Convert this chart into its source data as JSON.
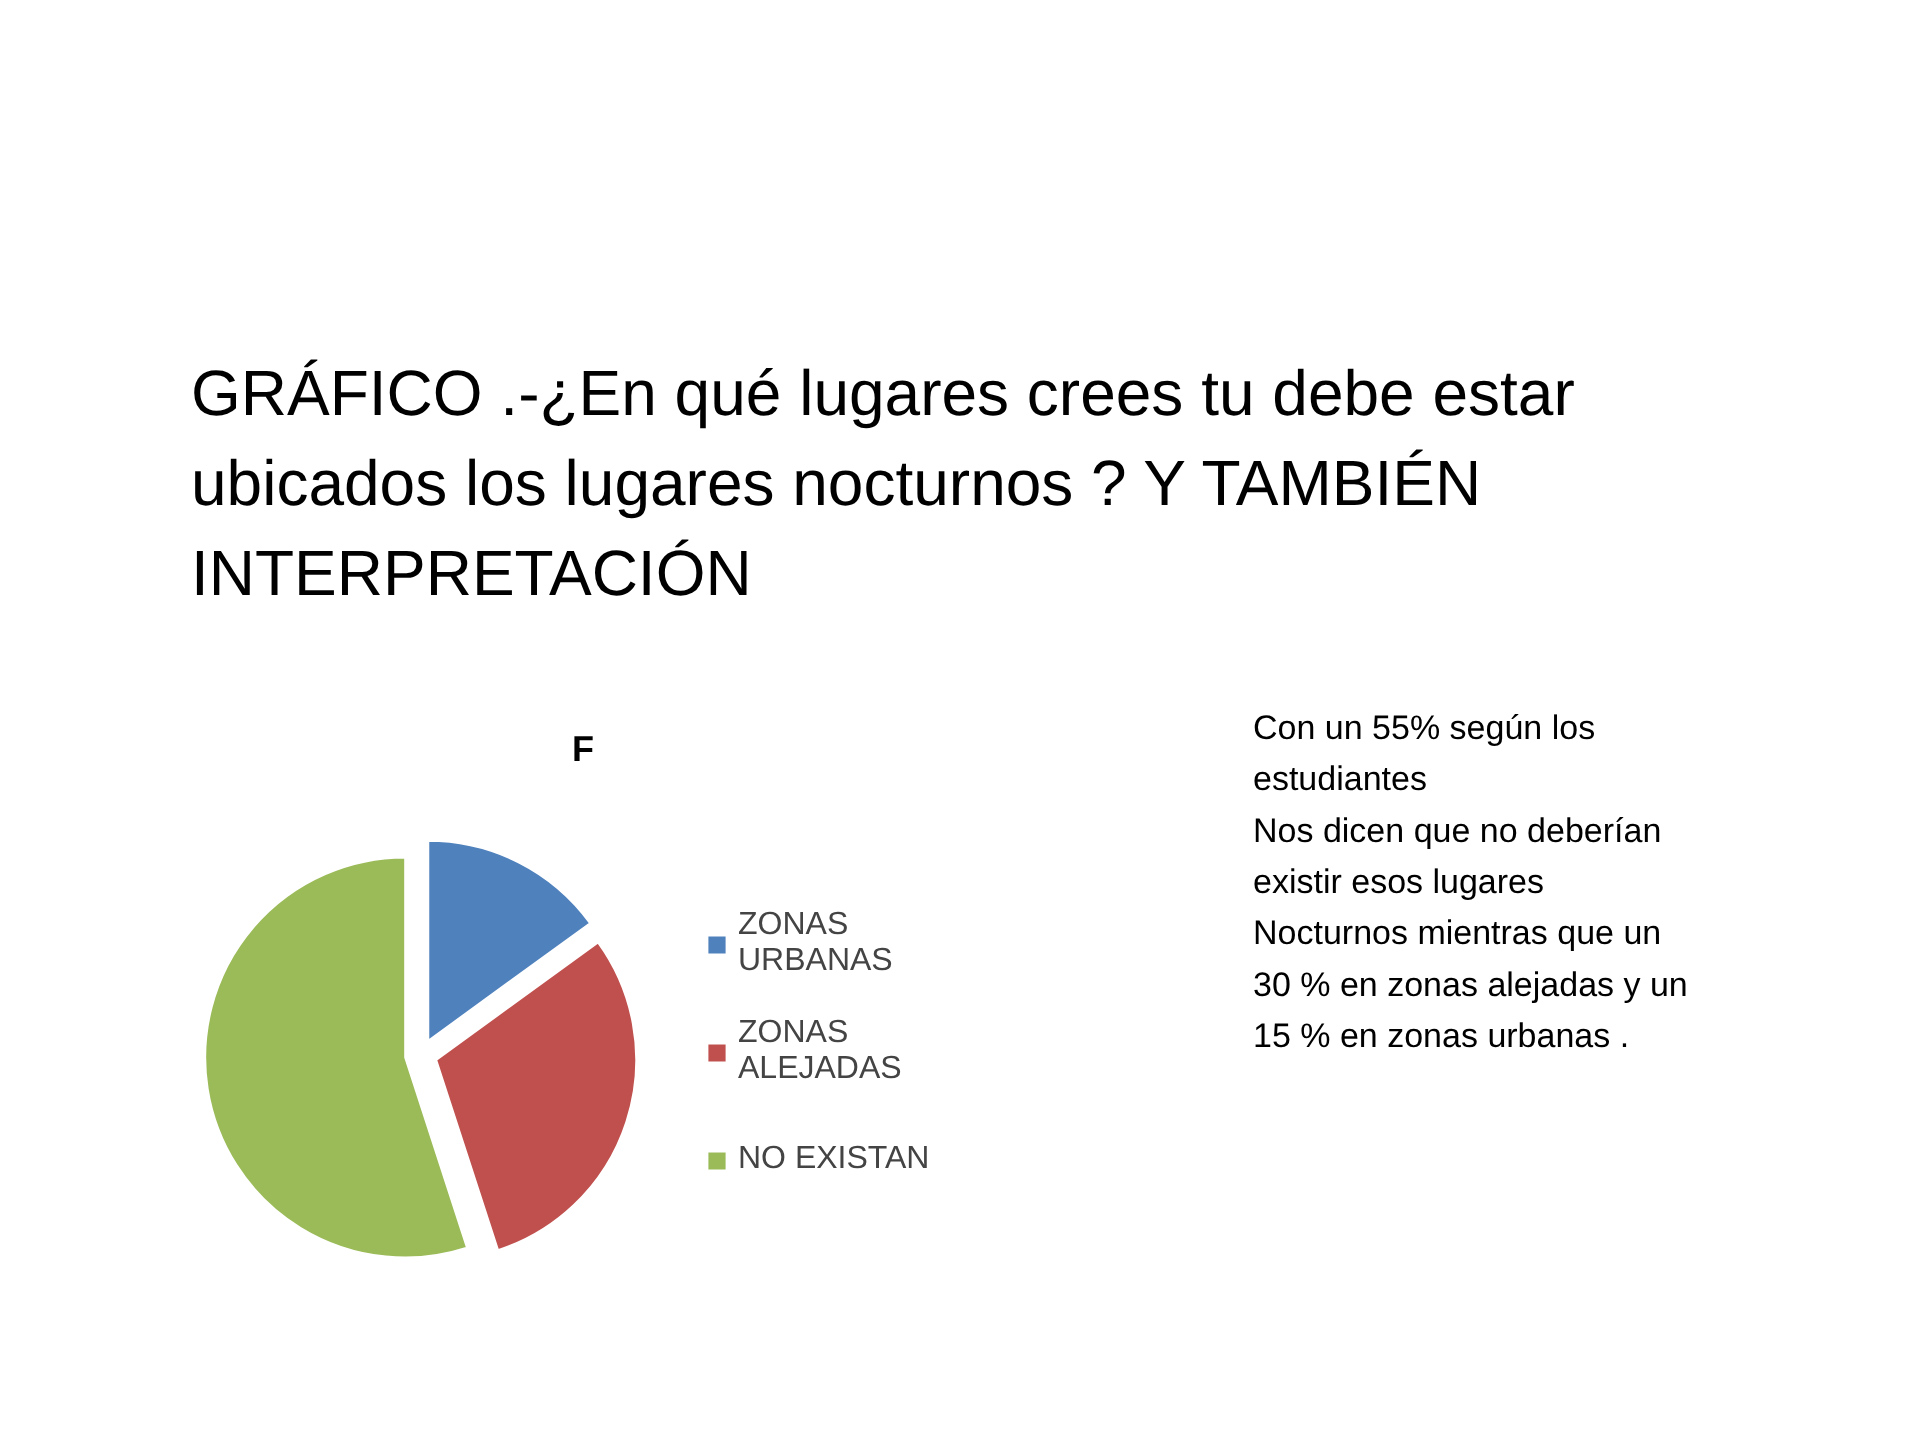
{
  "chart_data": {
    "type": "pie",
    "title": "GRÁFICO .-¿En qué lugares crees tu debe estar ubicados los lugares nocturnos ? Y TAMBIÉN INTERPRETACIÓN",
    "subtitle": "F",
    "categories": [
      "ZONAS URBANAS",
      "ZONAS ALEJADAS",
      "NO EXISTAN"
    ],
    "values": [
      15,
      30,
      55
    ],
    "colors": [
      "#4f81bd",
      "#c0504d",
      "#9bbb59"
    ],
    "legend": "right",
    "annotations": [
      "Con un 55% según los\nestudiantes\nNos dicen que no deberían\nexistir esos lugares\nNocturnos mientras que un\n30 % en zonas alejadas y un\n15 % en zonas urbanas ."
    ]
  }
}
